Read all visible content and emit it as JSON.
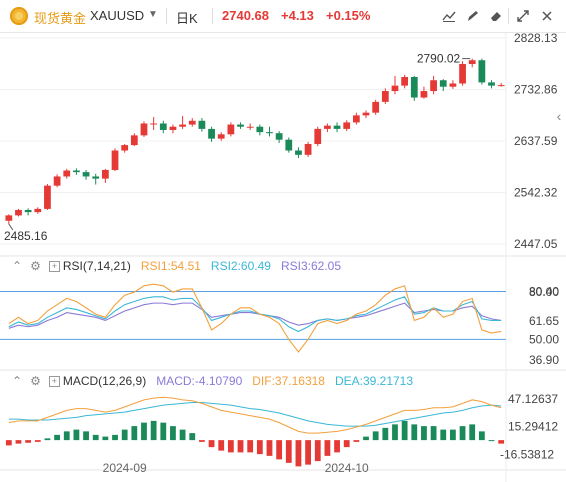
{
  "toolbar": {
    "instrument_name": "现货黄金",
    "symbol": "XAUUSD",
    "period": "日K",
    "last_price": "2740.68",
    "change": "+4.13",
    "change_pct": "+0.15%",
    "icons": [
      "draw-line-icon",
      "draw-tools-icon",
      "eraser-icon",
      "expand-icon",
      "close-icon"
    ]
  },
  "colors": {
    "up": "#e53935",
    "down": "#1b8a5a",
    "rsi1": "#f2a03d",
    "rsi2": "#3bb7d6",
    "rsi3": "#8c7ad8",
    "dif": "#f2a03d",
    "dea": "#3bb7d6"
  },
  "price_axis": {
    "ticks": [
      "2828.13",
      "2732.86",
      "2637.59",
      "2542.32",
      "2447.05"
    ]
  },
  "annotations": {
    "high": "2790.02",
    "low": "2485.16"
  },
  "rsi": {
    "label": "RSI(7,14,21)",
    "rsi1": "RSI1:54.51",
    "rsi2": "RSI2:60.49",
    "rsi3": "RSI3:62.05",
    "axis_ticks": [
      "80.00",
      "80.40",
      "61.65",
      "50.00",
      "36.90"
    ]
  },
  "macd": {
    "label": "MACD(12,26,9)",
    "macd_val": "MACD:-4.10790",
    "dif_val": "DIF:37.16318",
    "dea_val": "DEA:39.21713",
    "axis_ticks": [
      "47.12637",
      "15.29412",
      "-16.53812"
    ]
  },
  "x_axis": {
    "labels": [
      "2024-09",
      "2024-10"
    ]
  },
  "chart_data": {
    "type": "candlestick",
    "candles": [
      {
        "o": 2490,
        "c": 2500,
        "h": 2502,
        "l": 2484
      },
      {
        "o": 2500,
        "c": 2510,
        "h": 2512,
        "l": 2498
      },
      {
        "o": 2510,
        "c": 2506,
        "h": 2513,
        "l": 2500
      },
      {
        "o": 2506,
        "c": 2512,
        "h": 2515,
        "l": 2503
      },
      {
        "o": 2512,
        "c": 2555,
        "h": 2558,
        "l": 2510
      },
      {
        "o": 2555,
        "c": 2572,
        "h": 2576,
        "l": 2552
      },
      {
        "o": 2572,
        "c": 2583,
        "h": 2586,
        "l": 2568
      },
      {
        "o": 2583,
        "c": 2580,
        "h": 2587,
        "l": 2575
      },
      {
        "o": 2580,
        "c": 2572,
        "h": 2584,
        "l": 2566
      },
      {
        "o": 2572,
        "c": 2568,
        "h": 2577,
        "l": 2557
      },
      {
        "o": 2568,
        "c": 2584,
        "h": 2586,
        "l": 2560
      },
      {
        "o": 2584,
        "c": 2620,
        "h": 2624,
        "l": 2582
      },
      {
        "o": 2620,
        "c": 2630,
        "h": 2632,
        "l": 2616
      },
      {
        "o": 2630,
        "c": 2648,
        "h": 2652,
        "l": 2628
      },
      {
        "o": 2648,
        "c": 2670,
        "h": 2674,
        "l": 2645
      },
      {
        "o": 2670,
        "c": 2670,
        "h": 2682,
        "l": 2658
      },
      {
        "o": 2670,
        "c": 2658,
        "h": 2675,
        "l": 2652
      },
      {
        "o": 2658,
        "c": 2664,
        "h": 2668,
        "l": 2652
      },
      {
        "o": 2664,
        "c": 2668,
        "h": 2684,
        "l": 2660
      },
      {
        "o": 2668,
        "c": 2675,
        "h": 2680,
        "l": 2664
      },
      {
        "o": 2675,
        "c": 2660,
        "h": 2680,
        "l": 2655
      },
      {
        "o": 2660,
        "c": 2642,
        "h": 2664,
        "l": 2636
      },
      {
        "o": 2642,
        "c": 2650,
        "h": 2654,
        "l": 2638
      },
      {
        "o": 2650,
        "c": 2668,
        "h": 2672,
        "l": 2646
      },
      {
        "o": 2668,
        "c": 2664,
        "h": 2672,
        "l": 2660
      },
      {
        "o": 2664,
        "c": 2664,
        "h": 2670,
        "l": 2658
      },
      {
        "o": 2664,
        "c": 2654,
        "h": 2668,
        "l": 2648
      },
      {
        "o": 2654,
        "c": 2652,
        "h": 2664,
        "l": 2646
      },
      {
        "o": 2652,
        "c": 2640,
        "h": 2656,
        "l": 2634
      },
      {
        "o": 2640,
        "c": 2620,
        "h": 2644,
        "l": 2616
      },
      {
        "o": 2620,
        "c": 2612,
        "h": 2626,
        "l": 2606
      },
      {
        "o": 2612,
        "c": 2632,
        "h": 2636,
        "l": 2608
      },
      {
        "o": 2632,
        "c": 2660,
        "h": 2664,
        "l": 2628
      },
      {
        "o": 2660,
        "c": 2666,
        "h": 2670,
        "l": 2654
      },
      {
        "o": 2666,
        "c": 2660,
        "h": 2672,
        "l": 2654
      },
      {
        "o": 2660,
        "c": 2672,
        "h": 2676,
        "l": 2656
      },
      {
        "o": 2672,
        "c": 2685,
        "h": 2690,
        "l": 2668
      },
      {
        "o": 2685,
        "c": 2690,
        "h": 2694,
        "l": 2680
      },
      {
        "o": 2690,
        "c": 2710,
        "h": 2714,
        "l": 2686
      },
      {
        "o": 2710,
        "c": 2730,
        "h": 2735,
        "l": 2706
      },
      {
        "o": 2730,
        "c": 2740,
        "h": 2758,
        "l": 2724
      },
      {
        "o": 2740,
        "c": 2756,
        "h": 2760,
        "l": 2735
      },
      {
        "o": 2756,
        "c": 2718,
        "h": 2758,
        "l": 2712
      },
      {
        "o": 2718,
        "c": 2730,
        "h": 2738,
        "l": 2716
      },
      {
        "o": 2730,
        "c": 2750,
        "h": 2758,
        "l": 2724
      },
      {
        "o": 2750,
        "c": 2738,
        "h": 2752,
        "l": 2730
      },
      {
        "o": 2738,
        "c": 2744,
        "h": 2750,
        "l": 2734
      },
      {
        "o": 2744,
        "c": 2780,
        "h": 2785,
        "l": 2740
      },
      {
        "o": 2780,
        "c": 2787,
        "h": 2790,
        "l": 2774
      },
      {
        "o": 2787,
        "c": 2746,
        "h": 2790,
        "l": 2742
      },
      {
        "o": 2746,
        "c": 2740,
        "h": 2750,
        "l": 2735
      },
      {
        "o": 2740,
        "c": 2741,
        "h": 2745,
        "l": 2738
      }
    ],
    "price_range": [
      2447.05,
      2828.13
    ],
    "rsi_range": [
      36.9,
      86.4
    ],
    "rsi_levels": [
      80.4,
      50.0
    ],
    "rsi1": [
      60,
      64,
      60,
      62,
      68,
      72,
      76,
      74,
      70,
      66,
      64,
      72,
      78,
      80,
      84,
      85,
      84,
      80,
      82,
      82,
      70,
      56,
      60,
      66,
      70,
      70,
      66,
      64,
      60,
      50,
      42,
      50,
      60,
      62,
      60,
      62,
      66,
      68,
      72,
      78,
      82,
      84,
      62,
      64,
      70,
      64,
      66,
      74,
      76,
      56,
      54,
      55
    ],
    "rsi2": [
      58,
      61,
      59,
      60,
      64,
      67,
      70,
      69,
      67,
      65,
      63,
      68,
      72,
      74,
      76,
      77,
      77,
      75,
      76,
      76,
      70,
      62,
      64,
      66,
      68,
      68,
      66,
      65,
      63,
      58,
      55,
      58,
      62,
      63,
      62,
      63,
      65,
      66,
      69,
      72,
      75,
      77,
      66,
      67,
      70,
      68,
      68,
      72,
      74,
      63,
      62,
      62
    ],
    "rsi3": [
      57,
      59,
      58,
      59,
      62,
      64,
      67,
      66,
      65,
      64,
      62,
      65,
      68,
      70,
      72,
      73,
      73,
      72,
      73,
      73,
      69,
      64,
      65,
      66,
      67,
      67,
      66,
      65,
      64,
      61,
      59,
      60,
      62,
      63,
      62,
      63,
      64,
      65,
      67,
      69,
      71,
      73,
      67,
      68,
      69,
      68,
      68,
      70,
      71,
      65,
      63,
      62
    ],
    "macd_range": [
      -25,
      55
    ],
    "dif": [
      20,
      22,
      22,
      22,
      26,
      30,
      34,
      36,
      36,
      34,
      32,
      34,
      38,
      42,
      46,
      48,
      49,
      48,
      46,
      45,
      42,
      38,
      34,
      32,
      30,
      28,
      26,
      24,
      20,
      15,
      10,
      8,
      8,
      9,
      10,
      12,
      15,
      18,
      22,
      26,
      30,
      34,
      34,
      35,
      37,
      37,
      38,
      42,
      46,
      44,
      40,
      37
    ],
    "dea": [
      24,
      24,
      23,
      23,
      23,
      24,
      25,
      26,
      28,
      29,
      30,
      31,
      32,
      34,
      36,
      38,
      40,
      41,
      42,
      43,
      43,
      42,
      41,
      40,
      38,
      36,
      35,
      33,
      31,
      28,
      25,
      22,
      20,
      18,
      17,
      16,
      16,
      16,
      17,
      19,
      21,
      23,
      25,
      27,
      29,
      31,
      32,
      34,
      37,
      39,
      40,
      39
    ],
    "macd": [
      -6,
      -4,
      -3,
      -2,
      2,
      6,
      10,
      12,
      10,
      6,
      4,
      6,
      12,
      16,
      20,
      22,
      20,
      16,
      12,
      8,
      -2,
      -8,
      -12,
      -14,
      -14,
      -14,
      -16,
      -18,
      -22,
      -26,
      -30,
      -28,
      -24,
      -18,
      -14,
      -8,
      -2,
      4,
      10,
      14,
      18,
      22,
      18,
      16,
      16,
      12,
      12,
      16,
      18,
      10,
      0,
      -4
    ],
    "x_labels": [
      "2024-09",
      "2024-10"
    ]
  }
}
